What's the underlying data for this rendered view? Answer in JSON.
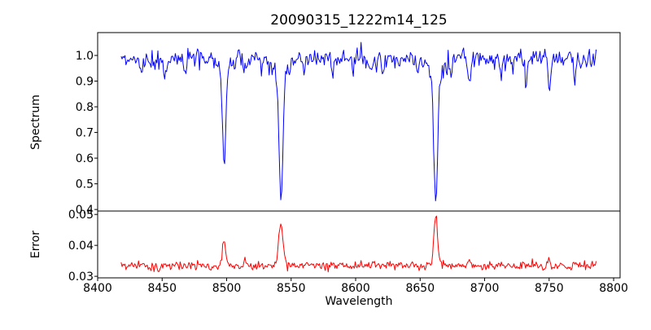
{
  "chart_data": {
    "type": "line",
    "title": "20090315_1222m14_125",
    "xlabel": "Wavelength",
    "background_color": "#ffffff",
    "axis_color": "#000000",
    "legend": "none",
    "grid": false,
    "x_axis": {
      "lim": [
        8400,
        8805
      ],
      "data_start": 8418.2,
      "data_end": 8786.7,
      "sample_step": 0.75,
      "ticks": [
        {
          "value": 8400,
          "label": "8400"
        },
        {
          "value": 8450,
          "label": "8450"
        },
        {
          "value": 8500,
          "label": "8500"
        },
        {
          "value": 8550,
          "label": "8550"
        },
        {
          "value": 8600,
          "label": "8600"
        },
        {
          "value": 8650,
          "label": "8650"
        },
        {
          "value": 8700,
          "label": "8700"
        },
        {
          "value": 8750,
          "label": "8750"
        },
        {
          "value": 8800,
          "label": "8800"
        }
      ]
    },
    "panels": [
      {
        "name": "spectrum",
        "ylabel": "Spectrum",
        "color": "#0000ff",
        "ylim": [
          0.394,
          1.089
        ],
        "ticks": [
          {
            "value": 1.0,
            "label": "1.0"
          },
          {
            "value": 0.9,
            "label": "0.9"
          },
          {
            "value": 0.8,
            "label": "0.8"
          },
          {
            "value": 0.7,
            "label": "0.7"
          },
          {
            "value": 0.6,
            "label": "0.6"
          },
          {
            "value": 0.5,
            "label": "0.5"
          },
          {
            "value": 0.4,
            "label": "0.4"
          }
        ],
        "series": {
          "description": "normalized stellar spectrum, continuum ~1.0 with Ca II triplet absorption lines at 8498, 8542, 8662",
          "baseline": 0.997,
          "noise_sigma": 0.016,
          "noise_dip": 0.013,
          "gaussians": [
            {
              "center": 8498.0,
              "amp": -0.355,
              "sigma": 1.2
            },
            {
              "center": 8498.0,
              "amp": -0.055,
              "sigma": 4.0
            },
            {
              "center": 8542.1,
              "amp": -0.5,
              "sigma": 1.4
            },
            {
              "center": 8542.1,
              "amp": -0.075,
              "sigma": 5.0
            },
            {
              "center": 8662.1,
              "amp": -0.49,
              "sigma": 1.4
            },
            {
              "center": 8662.1,
              "amp": -0.075,
              "sigma": 5.0
            },
            {
              "center": 8434,
              "amp": -0.08,
              "sigma": 0.9
            },
            {
              "center": 8452,
              "amp": -0.05,
              "sigma": 0.8
            },
            {
              "center": 8468,
              "amp": -0.05,
              "sigma": 0.8
            },
            {
              "center": 8514,
              "amp": -0.05,
              "sigma": 0.8
            },
            {
              "center": 8527,
              "amp": -0.04,
              "sigma": 0.8
            },
            {
              "center": 8560,
              "amp": -0.04,
              "sigma": 0.8
            },
            {
              "center": 8582,
              "amp": -0.08,
              "sigma": 0.9
            },
            {
              "center": 8598,
              "amp": -0.05,
              "sigma": 0.8
            },
            {
              "center": 8611,
              "amp": -0.05,
              "sigma": 0.8
            },
            {
              "center": 8621,
              "amp": -0.05,
              "sigma": 0.8
            },
            {
              "center": 8648,
              "amp": -0.05,
              "sigma": 0.8
            },
            {
              "center": 8674,
              "amp": -0.05,
              "sigma": 0.8
            },
            {
              "center": 8688,
              "amp": -0.1,
              "sigma": 1.0
            },
            {
              "center": 8713,
              "amp": -0.07,
              "sigma": 0.9
            },
            {
              "center": 8732,
              "amp": -0.08,
              "sigma": 0.9
            },
            {
              "center": 8750,
              "amp": -0.12,
              "sigma": 1.0
            },
            {
              "center": 8770,
              "amp": -0.1,
              "sigma": 0.9
            }
          ]
        }
      },
      {
        "name": "error",
        "ylabel": "Error",
        "color": "#ff0000",
        "ylim": [
          0.0295,
          0.0511
        ],
        "ticks": [
          {
            "value": 0.05,
            "label": "0.05"
          },
          {
            "value": 0.04,
            "label": "0.04"
          },
          {
            "value": 0.03,
            "label": "0.03"
          }
        ],
        "series": {
          "description": "error spectrum, baseline ~0.033 with peaks at the absorption line centers",
          "baseline": 0.0334,
          "noise_sigma": 0.0007,
          "noise_dip": 0,
          "gaussians": [
            {
              "center": 8498.0,
              "amp": 0.0082,
              "sigma": 1.3
            },
            {
              "center": 8542.1,
              "amp": 0.0138,
              "sigma": 1.6
            },
            {
              "center": 8662.1,
              "amp": 0.0165,
              "sigma": 1.4
            },
            {
              "center": 8434,
              "amp": 0.0018,
              "sigma": 1.0
            },
            {
              "center": 8514,
              "amp": 0.0022,
              "sigma": 0.6
            },
            {
              "center": 8582,
              "amp": 0.001,
              "sigma": 0.8
            },
            {
              "center": 8688,
              "amp": 0.0015,
              "sigma": 0.9
            },
            {
              "center": 8750,
              "amp": 0.0018,
              "sigma": 0.8
            },
            {
              "center": 8770,
              "amp": 0.0012,
              "sigma": 0.8
            }
          ]
        }
      }
    ],
    "render_seed": 20090315
  }
}
